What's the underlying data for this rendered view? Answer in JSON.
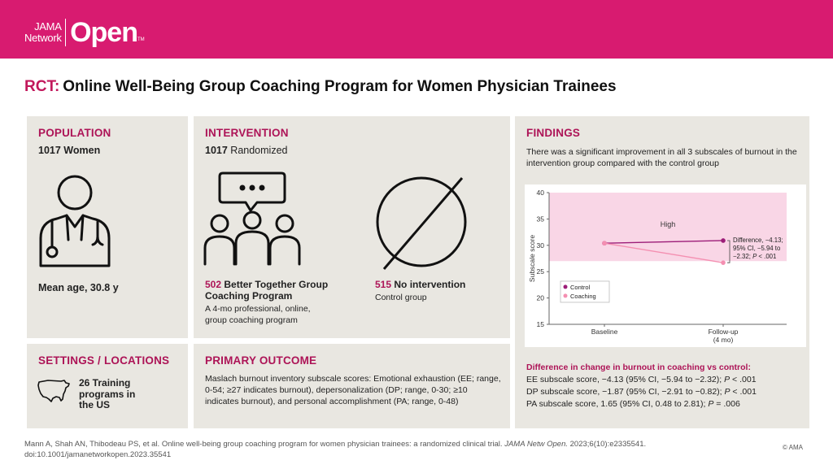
{
  "brand": {
    "line1": "JAMA",
    "line2": "Network",
    "open": "Open",
    "tm": "TM"
  },
  "title": {
    "prefix": "RCT:",
    "text": "Online Well-Being Group Coaching Program for Women Physician Trainees"
  },
  "population": {
    "heading": "POPULATION",
    "count": "1017",
    "count_label": "Women",
    "mean_age": "Mean age, 30.8 y"
  },
  "intervention": {
    "heading": "INTERVENTION",
    "count": "1017",
    "count_label": "Randomized",
    "group1_count": "502",
    "group1_label": "Better Together Group",
    "group1_label2": "Coaching Program",
    "group1_desc": "A 4-mo professional, online, group coaching program",
    "group2_count": "515",
    "group2_label": "No intervention",
    "group2_desc": "Control group"
  },
  "settings": {
    "heading": "SETTINGS / LOCATIONS",
    "text": "26 Training programs in the US"
  },
  "outcome": {
    "heading": "PRIMARY OUTCOME",
    "text": "Maslach burnout inventory subscale scores: Emotional exhaustion (EE; range, 0-54; ≥27 indicates burnout), depersonalization (DP; range, 0-30; ≥10 indicates burnout), and personal accomplishment (PA; range, 0-48)"
  },
  "findings": {
    "heading": "FINDINGS",
    "summary": "There was a significant improvement in all 3 subscales of burnout in the intervention group compared with the control group",
    "diff_heading": "Difference in change in burnout in coaching vs control:",
    "diffs": [
      {
        "label": "EE subscale score, −4.13 (95% CI, −5.94 to −2.32); ",
        "p_italic": "P",
        "p": " < .001"
      },
      {
        "label": "DP subscale score, −1.87 (95% CI, −2.91 to −0.82); ",
        "p_italic": "P",
        "p": " < .001"
      },
      {
        "label": "PA subscale score, 1.65 (95% CI, 0.48 to 2.81); ",
        "p_italic": "P",
        "p": " = .006"
      }
    ]
  },
  "chart_data": {
    "type": "line",
    "x": [
      "Baseline",
      "Follow-up (4 mo)"
    ],
    "ylabel": "Subscale score",
    "ylim": [
      15,
      40
    ],
    "yticks": [
      15,
      20,
      25,
      30,
      35,
      40
    ],
    "high_band": {
      "label": "High",
      "from": 27,
      "to": 40
    },
    "series": [
      {
        "name": "Control",
        "values": [
          30.4,
          30.9
        ],
        "color": "#9c1d78"
      },
      {
        "name": "Coaching",
        "values": [
          30.4,
          26.7
        ],
        "color": "#f48fb1"
      }
    ],
    "annotation": {
      "lines": [
        "Difference, −4.13;",
        "95% CI, −5.94 to",
        "−2.32; ",
        "< .001"
      ],
      "p_italic": "P"
    },
    "legend_position": "bottom-left"
  },
  "citation": {
    "line1_pre": "Mann A, Shah AN, Thibodeau PS, et al. Online well-being group coaching program for women physician trainees: a randomized clinical trial. ",
    "journal": "JAMA Netw Open.",
    "line1_post": " 2023;6(10):e2335541.",
    "line2": "doi:10.1001/jamanetworkopen.2023.35541"
  },
  "copyright": "© AMA",
  "colors": {
    "brand": "#d81b70",
    "heading": "#ad1457",
    "panel": "#e9e7e1",
    "band": "#f9d6e6"
  }
}
